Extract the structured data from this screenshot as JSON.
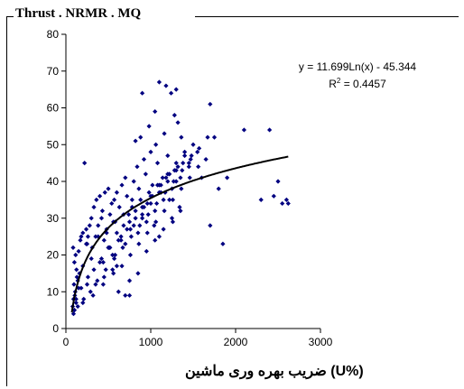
{
  "chart_data": {
    "type": "scatter",
    "title": "Thrust . NRMR . MQ",
    "xlabel": "ضریب بهره وری ماشین    (U%)",
    "ylabel": "",
    "xlim": [
      0,
      3000
    ],
    "ylim": [
      0,
      80
    ],
    "x_ticks": [
      "0",
      "1000",
      "2000",
      "3000"
    ],
    "y_ticks": [
      "0",
      "10",
      "20",
      "30",
      "40",
      "50",
      "60",
      "70",
      "80"
    ],
    "grid": false,
    "legend": "none",
    "marker_color": "#000080",
    "trendline": {
      "type": "logarithmic",
      "a": 11.699,
      "b": -45.344,
      "equation": "y = 11.699Ln(x) - 45.344",
      "r2_prefix": "R",
      "r2_exp": "2",
      "r2_suffix": " = 0.4457"
    },
    "series": [
      {
        "x": [
          80,
          90,
          100,
          110,
          95,
          120,
          105,
          130,
          150,
          140,
          160,
          85,
          100,
          115,
          125,
          170,
          180,
          200,
          220,
          250,
          240,
          260,
          280,
          300,
          310,
          330,
          350,
          360,
          380,
          400,
          420,
          430,
          440,
          460,
          480,
          500,
          510,
          520,
          540,
          550,
          560,
          570,
          580,
          600,
          620,
          630,
          650,
          660,
          680,
          700,
          720,
          740,
          760,
          780,
          800,
          820,
          840,
          860,
          880,
          900,
          920,
          940,
          960,
          980,
          1000,
          1020,
          1040,
          1060,
          1080,
          1100,
          1120,
          1140,
          1160,
          1180,
          1200,
          1220,
          1240,
          1260,
          1280,
          1300,
          1320,
          1340,
          1360,
          1400,
          1450,
          1500,
          1550,
          1600,
          1650,
          1700,
          1750,
          1800,
          1850,
          1900,
          2100,
          2300,
          2400,
          2450,
          2500,
          2550,
          2600,
          2620,
          350,
          450,
          600,
          700,
          750,
          850,
          950,
          1050,
          1150,
          1250,
          1350,
          400,
          500,
          650,
          800,
          900,
          1000,
          1100,
          1200,
          1300,
          300,
          550,
          700,
          850,
          950,
          1050,
          1150,
          1250,
          1350,
          1450,
          200,
          450,
          600,
          750,
          900,
          1000,
          1100,
          1200,
          1300,
          1400,
          120,
          180,
          260,
          330,
          420,
          520,
          620,
          720,
          820,
          920,
          1020,
          1120,
          1220,
          1320,
          150,
          240,
          380,
          480,
          580,
          680,
          780,
          880,
          980,
          1080,
          1180,
          1280,
          1380,
          1480,
          100,
          200,
          320,
          440,
          560,
          660,
          760,
          860,
          960,
          1060,
          1160,
          1260,
          1360,
          1460,
          1560,
          90,
          140,
          210,
          290,
          370,
          470,
          570,
          670,
          770,
          870,
          970,
          1070,
          1170,
          1270,
          1370,
          1470,
          1570,
          1670,
          250,
          750,
          1100,
          1700,
          900,
          1300,
          820,
          1050
        ],
        "y": [
          6,
          8,
          5,
          10,
          12,
          7,
          9,
          14,
          11,
          13,
          15,
          22,
          18,
          20,
          16,
          24,
          25,
          26,
          45,
          23,
          27,
          25,
          28,
          30,
          22,
          33,
          25,
          35,
          28,
          36,
          30,
          32,
          18,
          37,
          26,
          38,
          22,
          31,
          34,
          16,
          29,
          35,
          20,
          37,
          10,
          33,
          24,
          39,
          28,
          41,
          36,
          31,
          27,
          35,
          40,
          32,
          44,
          38,
          52,
          30,
          46,
          42,
          34,
          55,
          48,
          39,
          28,
          50,
          45,
          67,
          37,
          41,
          53,
          66,
          47,
          35,
          64,
          29,
          58,
          40,
          56,
          33,
          52,
          47,
          44,
          50,
          48,
          41,
          46,
          61,
          52,
          38,
          23,
          41,
          54,
          35,
          54,
          36,
          40,
          34,
          35,
          34,
          12,
          14,
          17,
          9,
          13,
          15,
          21,
          24,
          27,
          30,
          32,
          18,
          22,
          25,
          28,
          31,
          34,
          37,
          40,
          43,
          19,
          20,
          23,
          26,
          29,
          32,
          35,
          38,
          41,
          45,
          17,
          24,
          26,
          29,
          33,
          36,
          39,
          42,
          45,
          48,
          8,
          11,
          14,
          16,
          19,
          22,
          24,
          27,
          30,
          33,
          36,
          39,
          42,
          44,
          21,
          23,
          25,
          27,
          29,
          31,
          33,
          35,
          37,
          39,
          41,
          43,
          45,
          47,
          5,
          7,
          9,
          12,
          15,
          17,
          20,
          23,
          26,
          29,
          32,
          35,
          38,
          41,
          44,
          4,
          6,
          8,
          10,
          13,
          16,
          19,
          22,
          25,
          28,
          31,
          34,
          37,
          40,
          43,
          46,
          49,
          52,
          12,
          9,
          25,
          28,
          64,
          65,
          51,
          59
        ]
      }
    ]
  }
}
